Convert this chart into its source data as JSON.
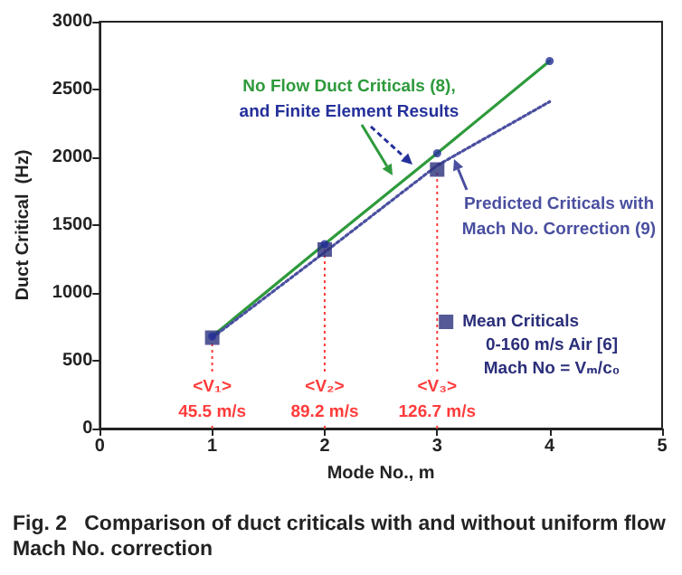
{
  "chart_data": {
    "type": "line",
    "title": "Fig. 2   Comparison of duct criticals with and without uniform flow Mach No. correction",
    "xlabel": "Mode No., m",
    "ylabel": "Duct Critical  (Hz)",
    "x": [
      1,
      2,
      3,
      4
    ],
    "series": [
      {
        "name": "No Flow Duct Criticals (8),",
        "color": "#2e9a3c",
        "values": [
          680,
          1360,
          2030,
          2710
        ],
        "marker": "none",
        "line_style": "solid"
      },
      {
        "name": "and Finite Element Results",
        "type": "scatter",
        "color": "#24309a",
        "values": [
          680,
          1360,
          2030,
          2710
        ],
        "marker": "circle"
      },
      {
        "name": "Predicted Criticals with Mach No. Correction (9)",
        "color": "#4a4fa0",
        "values": [
          670,
          1300,
          1940,
          2410
        ],
        "marker": "none",
        "line_style": "dotted"
      },
      {
        "name": "Mean Criticals",
        "type": "scatter",
        "color": "#2b2f7a",
        "values": [
          670,
          1320,
          1910
        ],
        "x": [
          1,
          2,
          3
        ],
        "marker": "square"
      }
    ],
    "ref_lines": [
      {
        "axis": "x",
        "value": 1,
        "label": "<V₁>\n45.5 m/s",
        "color": "#ff3b3b",
        "line_style": "dotted"
      },
      {
        "axis": "x",
        "value": 2,
        "label": "<V₂>\n89.2 m/s",
        "color": "#ff3b3b",
        "line_style": "dotted"
      },
      {
        "axis": "x",
        "value": 3,
        "label": "<V₃>\n126.7 m/s",
        "color": "#ff3b3b",
        "line_style": "dotted"
      }
    ],
    "annotations": [
      "0-160 m/s Air [6]",
      "Mach No = Vₘ/c₀"
    ],
    "xlim": [
      0,
      5
    ],
    "xticks": [
      0,
      1,
      2,
      3,
      4,
      5
    ],
    "ylim": [
      0,
      3000
    ],
    "yticks": [
      0,
      500,
      1000,
      1500,
      2000,
      2500,
      3000
    ],
    "grid": false,
    "legend": "bottom right"
  }
}
